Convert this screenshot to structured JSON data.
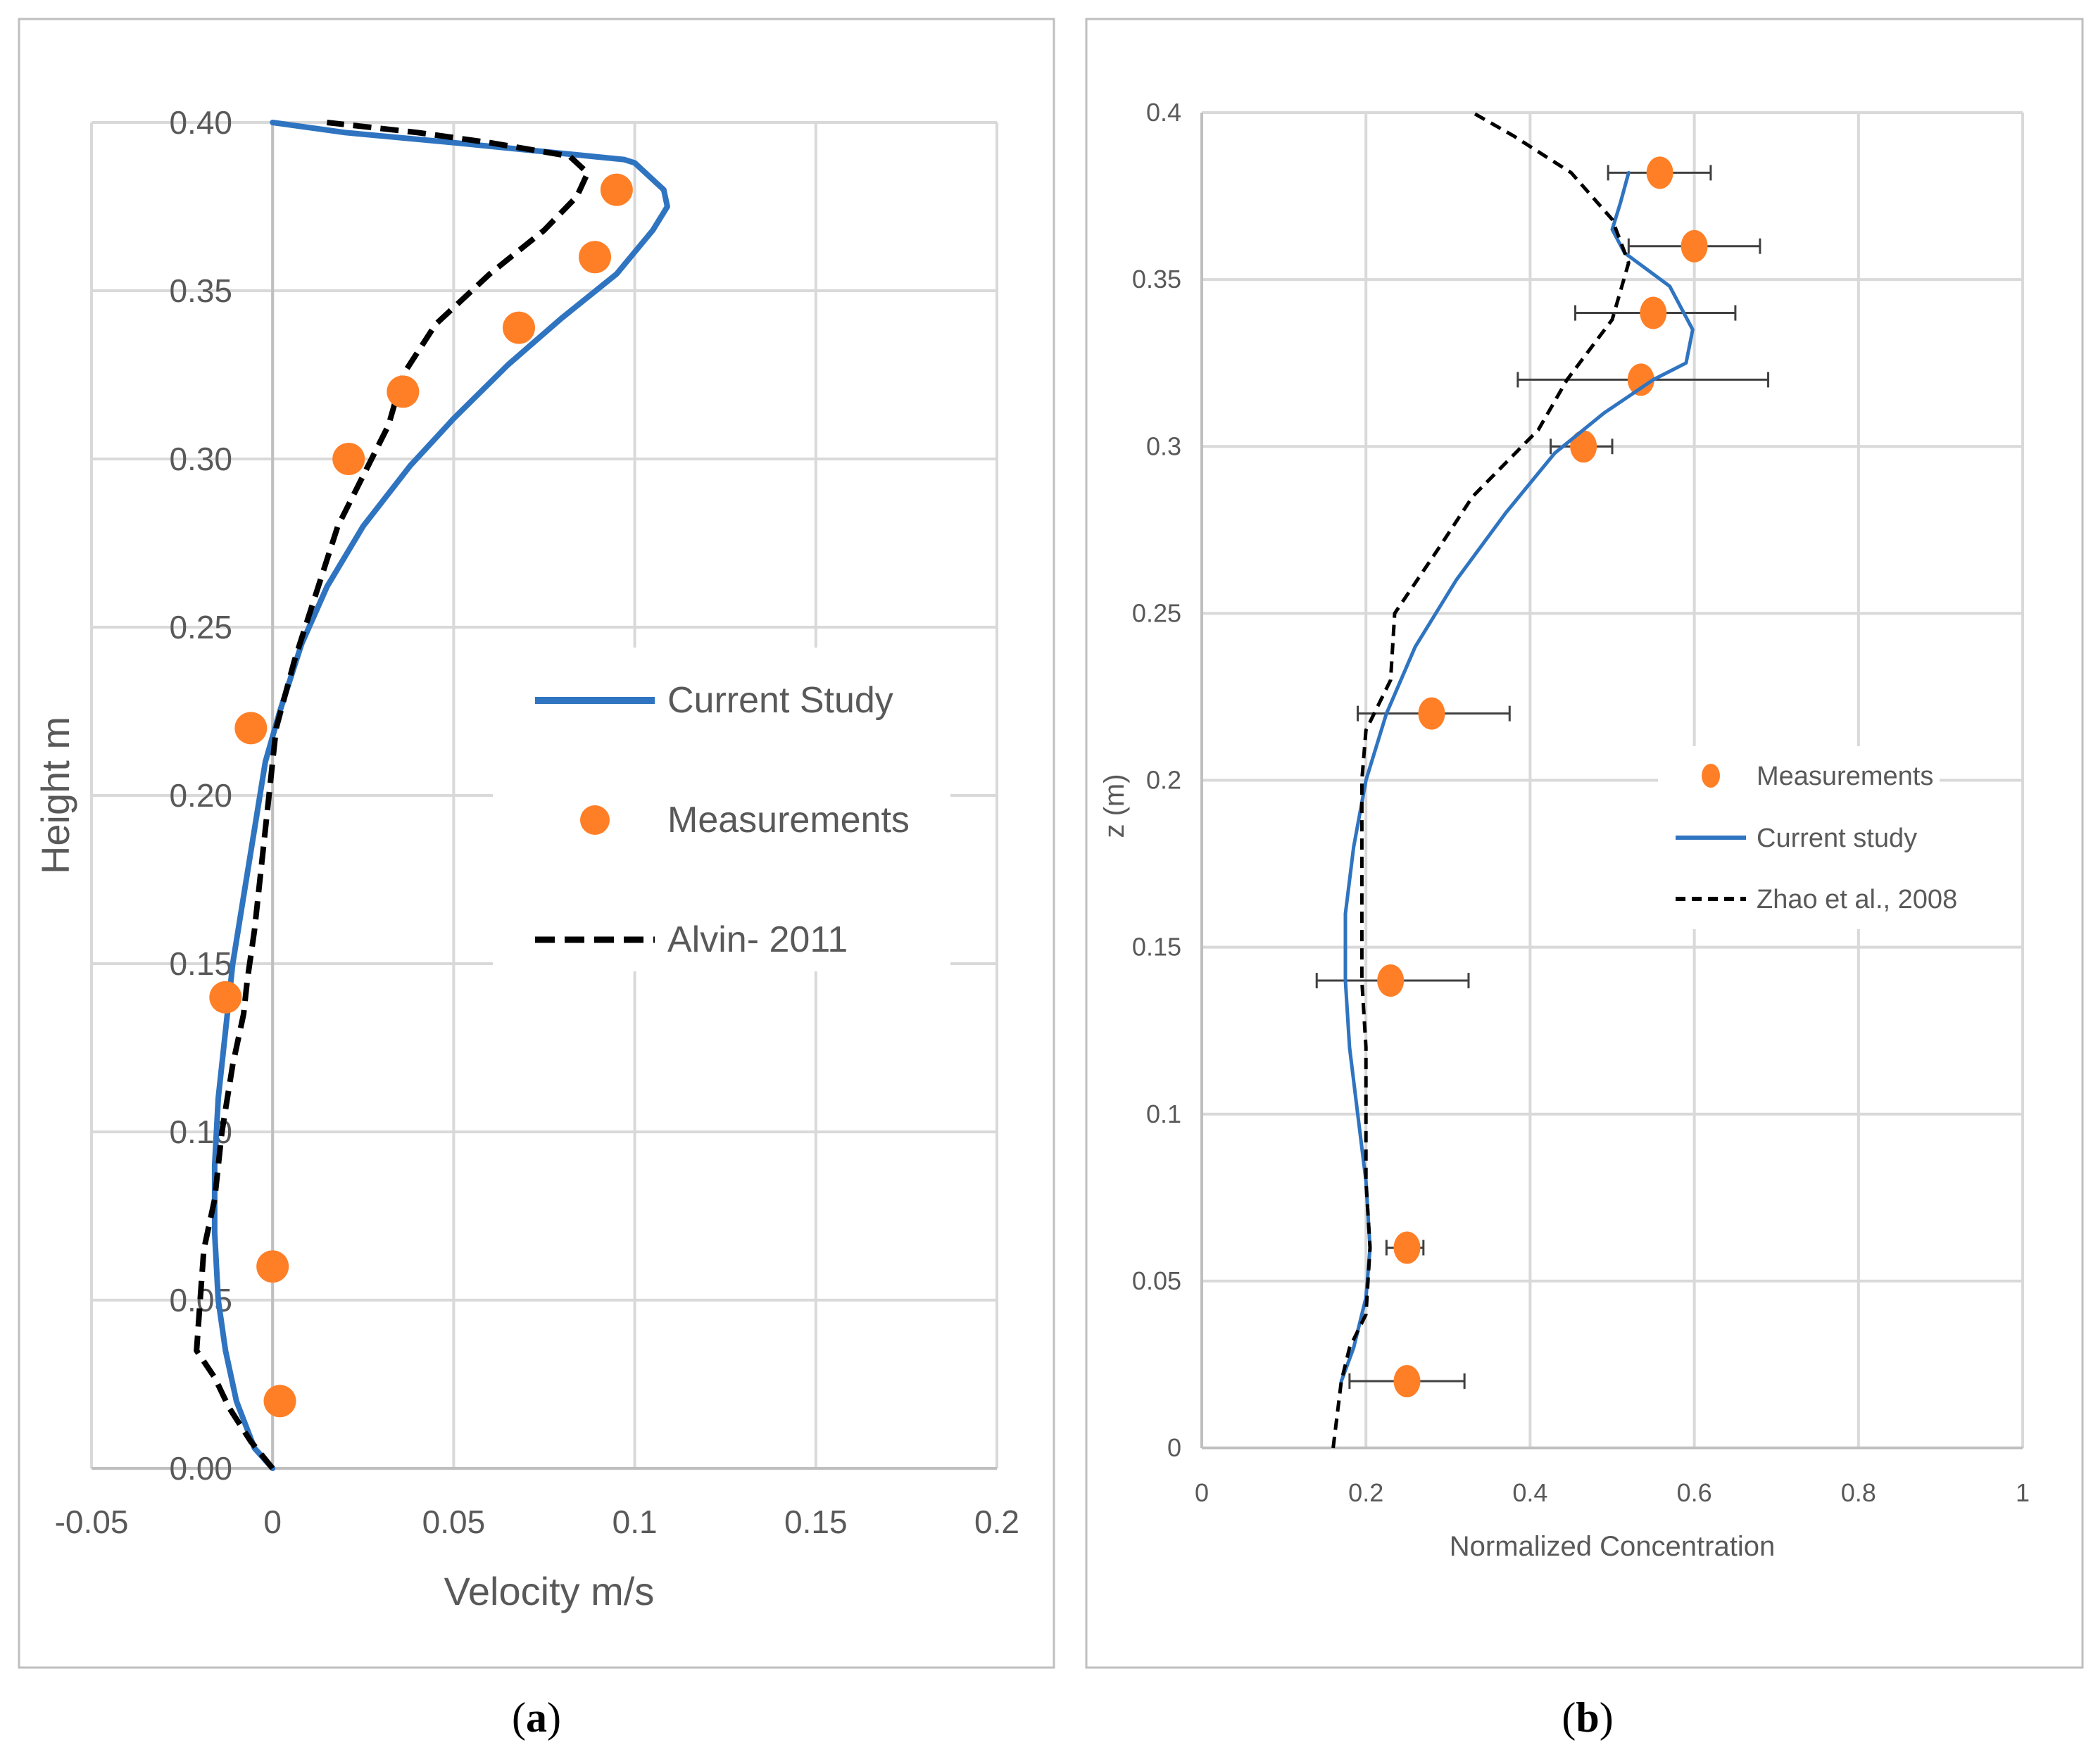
{
  "chart_data": [
    {
      "type": "line",
      "panel_caption": [
        "(",
        "a",
        ")"
      ],
      "title": "",
      "xlabel": "Velocity m/s",
      "ylabel": "Height m",
      "xlim": [
        -0.05,
        0.2
      ],
      "ylim": [
        0.0,
        0.4
      ],
      "x_ticks": [
        -0.05,
        0,
        0.05,
        0.1,
        0.15,
        0.2
      ],
      "x_tick_labels": [
        "-0.05",
        "0",
        "0.05",
        "0.1",
        "0.15",
        "0.2"
      ],
      "y_ticks": [
        0.0,
        0.05,
        0.1,
        0.15,
        0.2,
        0.25,
        0.3,
        0.35,
        0.4
      ],
      "y_tick_labels": [
        "0.00",
        "0.05",
        "0.10",
        "0.15",
        "0.20",
        "0.25",
        "0.30",
        "0.35",
        "0.40"
      ],
      "grid": true,
      "legend_position": "right",
      "series": [
        {
          "name": "Current Study",
          "style": "solid-line",
          "color": "#2f74c0",
          "points": [
            [
              0.0,
              0.0
            ],
            [
              -0.005,
              0.006
            ],
            [
              -0.01,
              0.02
            ],
            [
              -0.013,
              0.035
            ],
            [
              -0.015,
              0.05
            ],
            [
              -0.016,
              0.07
            ],
            [
              -0.016,
              0.09
            ],
            [
              -0.015,
              0.11
            ],
            [
              -0.013,
              0.13
            ],
            [
              -0.011,
              0.15
            ],
            [
              -0.008,
              0.17
            ],
            [
              -0.005,
              0.19
            ],
            [
              -0.002,
              0.21
            ],
            [
              0.002,
              0.225
            ],
            [
              0.008,
              0.245
            ],
            [
              0.015,
              0.262
            ],
            [
              0.025,
              0.28
            ],
            [
              0.038,
              0.298
            ],
            [
              0.05,
              0.312
            ],
            [
              0.065,
              0.328
            ],
            [
              0.08,
              0.342
            ],
            [
              0.095,
              0.355
            ],
            [
              0.105,
              0.368
            ],
            [
              0.109,
              0.375
            ],
            [
              0.108,
              0.38
            ],
            [
              0.1,
              0.388
            ],
            [
              0.097,
              0.389
            ],
            [
              0.05,
              0.394
            ],
            [
              0.02,
              0.397
            ],
            [
              0.0,
              0.4
            ]
          ]
        },
        {
          "name": "Measurements",
          "style": "marker",
          "color": "#ff7f27",
          "points": [
            [
              0.002,
              0.02
            ],
            [
              0.0,
              0.06
            ],
            [
              -0.013,
              0.14
            ],
            [
              -0.006,
              0.22
            ],
            [
              0.021,
              0.3
            ],
            [
              0.036,
              0.32
            ],
            [
              0.068,
              0.339
            ],
            [
              0.089,
              0.36
            ],
            [
              0.095,
              0.38
            ]
          ]
        },
        {
          "name": "Alvin- 2011",
          "style": "dashed-line",
          "color": "#000000",
          "points": [
            [
              0.0,
              0.0
            ],
            [
              -0.006,
              0.008
            ],
            [
              -0.012,
              0.018
            ],
            [
              -0.016,
              0.027
            ],
            [
              -0.021,
              0.035
            ],
            [
              -0.02,
              0.05
            ],
            [
              -0.019,
              0.065
            ],
            [
              -0.016,
              0.08
            ],
            [
              -0.014,
              0.1
            ],
            [
              -0.011,
              0.12
            ],
            [
              -0.008,
              0.135
            ],
            [
              -0.007,
              0.145
            ],
            [
              -0.005,
              0.16
            ],
            [
              -0.003,
              0.18
            ],
            [
              -0.001,
              0.2
            ],
            [
              0.001,
              0.22
            ],
            [
              0.006,
              0.24
            ],
            [
              0.012,
              0.26
            ],
            [
              0.018,
              0.28
            ],
            [
              0.025,
              0.295
            ],
            [
              0.032,
              0.31
            ],
            [
              0.036,
              0.325
            ],
            [
              0.045,
              0.34
            ],
            [
              0.06,
              0.355
            ],
            [
              0.075,
              0.368
            ],
            [
              0.084,
              0.378
            ],
            [
              0.087,
              0.385
            ],
            [
              0.082,
              0.39
            ],
            [
              0.06,
              0.394
            ],
            [
              0.04,
              0.397
            ],
            [
              0.015,
              0.4
            ]
          ]
        }
      ]
    },
    {
      "type": "line",
      "panel_caption": [
        "(",
        "b",
        ")"
      ],
      "title": "",
      "xlabel": "Normalized Concentration",
      "ylabel": "z (m)",
      "xlim": [
        0,
        1
      ],
      "ylim": [
        0,
        0.4
      ],
      "x_ticks": [
        0,
        0.2,
        0.4,
        0.6,
        0.8,
        1
      ],
      "x_tick_labels": [
        "0",
        "0.2",
        "0.4",
        "0.6",
        "0.8",
        "1"
      ],
      "y_ticks": [
        0,
        0.05,
        0.1,
        0.15,
        0.2,
        0.25,
        0.3,
        0.35,
        0.4
      ],
      "y_tick_labels": [
        "0",
        "0.05",
        "0.1",
        "0.15",
        "0.2",
        "0.25",
        "0.3",
        "0.35",
        "0.4"
      ],
      "grid": true,
      "legend_position": "right",
      "series": [
        {
          "name": "Measurements",
          "style": "marker-with-xerror",
          "color": "#ff7f27",
          "points": [
            {
              "x": 0.25,
              "y": 0.02,
              "xmin": 0.18,
              "xmax": 0.32
            },
            {
              "x": 0.25,
              "y": 0.06,
              "xmin": 0.225,
              "xmax": 0.27
            },
            {
              "x": 0.23,
              "y": 0.14,
              "xmin": 0.14,
              "xmax": 0.325
            },
            {
              "x": 0.28,
              "y": 0.22,
              "xmin": 0.19,
              "xmax": 0.375
            },
            {
              "x": 0.465,
              "y": 0.3,
              "xmin": 0.425,
              "xmax": 0.5
            },
            {
              "x": 0.535,
              "y": 0.32,
              "xmin": 0.385,
              "xmax": 0.69
            },
            {
              "x": 0.55,
              "y": 0.34,
              "xmin": 0.455,
              "xmax": 0.65
            },
            {
              "x": 0.6,
              "y": 0.36,
              "xmin": 0.52,
              "xmax": 0.68
            },
            {
              "x": 0.558,
              "y": 0.382,
              "xmin": 0.495,
              "xmax": 0.62
            }
          ]
        },
        {
          "name": "Current study",
          "style": "solid-line",
          "color": "#2f74c0",
          "points": [
            [
              0.17,
              0.02
            ],
            [
              0.185,
              0.03
            ],
            [
              0.2,
              0.045
            ],
            [
              0.205,
              0.06
            ],
            [
              0.2,
              0.08
            ],
            [
              0.19,
              0.1
            ],
            [
              0.18,
              0.12
            ],
            [
              0.175,
              0.14
            ],
            [
              0.175,
              0.16
            ],
            [
              0.185,
              0.18
            ],
            [
              0.2,
              0.2
            ],
            [
              0.225,
              0.22
            ],
            [
              0.26,
              0.24
            ],
            [
              0.31,
              0.26
            ],
            [
              0.37,
              0.28
            ],
            [
              0.43,
              0.298
            ],
            [
              0.49,
              0.31
            ],
            [
              0.55,
              0.32
            ],
            [
              0.59,
              0.325
            ],
            [
              0.598,
              0.335
            ],
            [
              0.57,
              0.348
            ],
            [
              0.515,
              0.358
            ],
            [
              0.5,
              0.365
            ],
            [
              0.51,
              0.373
            ],
            [
              0.52,
              0.382
            ]
          ]
        },
        {
          "name": "Zhao et al., 2008",
          "style": "dashed-line",
          "color": "#000000",
          "points": [
            [
              0.16,
              0.0
            ],
            [
              0.17,
              0.02
            ],
            [
              0.18,
              0.03
            ],
            [
              0.2,
              0.04
            ],
            [
              0.205,
              0.06
            ],
            [
              0.2,
              0.08
            ],
            [
              0.2,
              0.1
            ],
            [
              0.2,
              0.12
            ],
            [
              0.195,
              0.14
            ],
            [
              0.195,
              0.16
            ],
            [
              0.195,
              0.18
            ],
            [
              0.195,
              0.2
            ],
            [
              0.2,
              0.215
            ],
            [
              0.23,
              0.23
            ],
            [
              0.235,
              0.25
            ],
            [
              0.29,
              0.27
            ],
            [
              0.33,
              0.285
            ],
            [
              0.37,
              0.295
            ],
            [
              0.41,
              0.305
            ],
            [
              0.445,
              0.32
            ],
            [
              0.5,
              0.338
            ],
            [
              0.52,
              0.355
            ],
            [
              0.5,
              0.368
            ],
            [
              0.45,
              0.382
            ],
            [
              0.38,
              0.393
            ],
            [
              0.33,
              0.4
            ]
          ]
        }
      ]
    }
  ]
}
